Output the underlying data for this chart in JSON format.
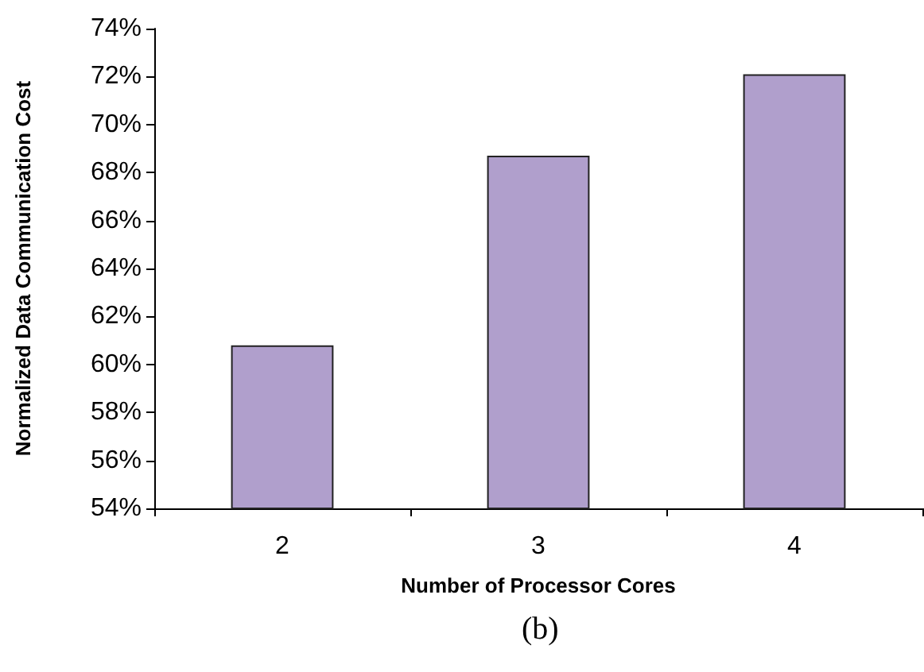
{
  "chart_data": {
    "type": "bar",
    "xlabel": "Number of Processor Cores",
    "ylabel": "Normalized Data Communication Cost",
    "categories": [
      "2",
      "3",
      "4"
    ],
    "values": [
      60.8,
      68.7,
      72.1
    ],
    "color": "#b09fcc",
    "ylim": [
      54,
      74
    ],
    "yticks": [
      {
        "value": 54,
        "label": "54%"
      },
      {
        "value": 56,
        "label": "56%"
      },
      {
        "value": 58,
        "label": "58%"
      },
      {
        "value": 60,
        "label": "60%"
      },
      {
        "value": 62,
        "label": "62%"
      },
      {
        "value": 64,
        "label": "64%"
      },
      {
        "value": 66,
        "label": "66%"
      },
      {
        "value": 68,
        "label": "68%"
      },
      {
        "value": 70,
        "label": "70%"
      },
      {
        "value": 72,
        "label": "72%"
      },
      {
        "value": 74,
        "label": "74%"
      }
    ],
    "annotations": [
      "(b)"
    ],
    "grid": false
  }
}
